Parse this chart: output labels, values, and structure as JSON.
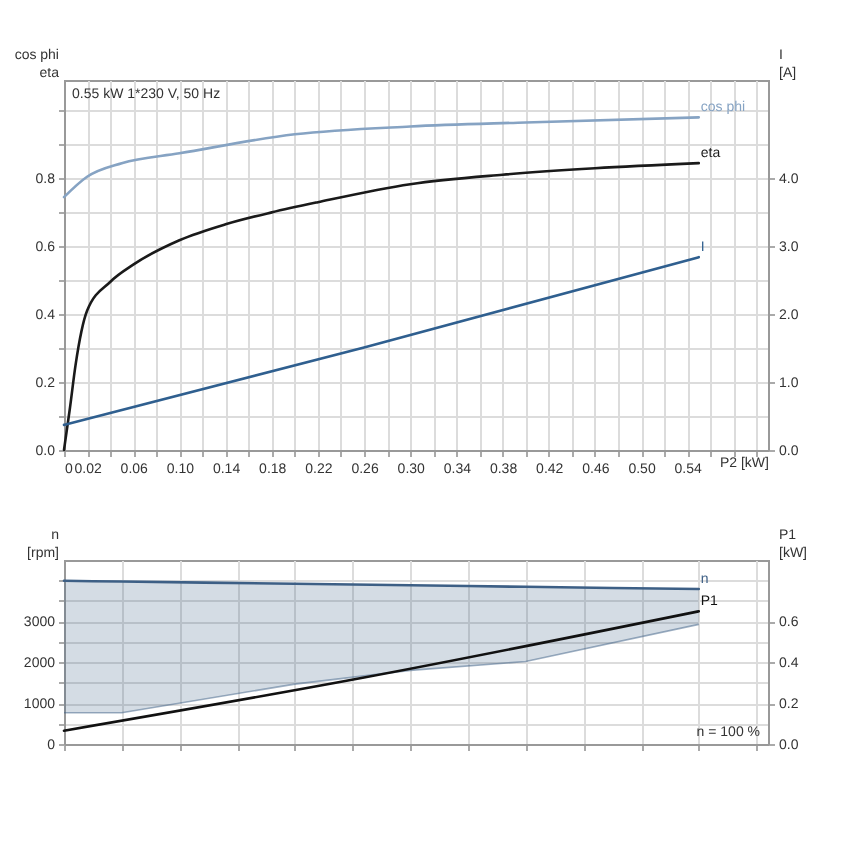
{
  "chart_data": [
    {
      "type": "line",
      "xlabel": "P2 [kW]",
      "ylabel": "cos phi\neta",
      "y2label": "I\n[A]",
      "annotations": [
        "0.55 kW   1*230 V, 50 Hz"
      ],
      "grid": true,
      "xlim": [
        0,
        0.61
      ],
      "xticks": [
        {
          "value": 0,
          "label": "0"
        },
        {
          "value": 0.02,
          "label": "0.02"
        },
        {
          "value": 0.04,
          "label": null
        },
        {
          "value": 0.06,
          "label": "0.06"
        },
        {
          "value": 0.08,
          "label": null
        },
        {
          "value": 0.1,
          "label": "0.10"
        },
        {
          "value": 0.12,
          "label": null
        },
        {
          "value": 0.14,
          "label": "0.14"
        },
        {
          "value": 0.16,
          "label": null
        },
        {
          "value": 0.18,
          "label": "0.18"
        },
        {
          "value": 0.2,
          "label": null
        },
        {
          "value": 0.22,
          "label": "0.22"
        },
        {
          "value": 0.24,
          "label": null
        },
        {
          "value": 0.26,
          "label": "0.26"
        },
        {
          "value": 0.28,
          "label": null
        },
        {
          "value": 0.3,
          "label": "0.30"
        },
        {
          "value": 0.32,
          "label": null
        },
        {
          "value": 0.34,
          "label": "0.34"
        },
        {
          "value": 0.36,
          "label": null
        },
        {
          "value": 0.38,
          "label": "0.38"
        },
        {
          "value": 0.4,
          "label": null
        },
        {
          "value": 0.42,
          "label": "0.42"
        },
        {
          "value": 0.44,
          "label": null
        },
        {
          "value": 0.46,
          "label": "0.46"
        },
        {
          "value": 0.48,
          "label": null
        },
        {
          "value": 0.5,
          "label": "0.50"
        },
        {
          "value": 0.52,
          "label": null
        },
        {
          "value": 0.54,
          "label": "0.54"
        },
        {
          "value": 0.56,
          "label": null
        },
        {
          "value": 0.58,
          "label": null
        },
        {
          "value": 0.6,
          "label": null
        }
      ],
      "ylim": [
        0,
        1.09
      ],
      "yticks": [
        {
          "value": 0,
          "label": "0.0"
        },
        {
          "value": 0.1,
          "label": null
        },
        {
          "value": 0.2,
          "label": "0.2"
        },
        {
          "value": 0.3,
          "label": null
        },
        {
          "value": 0.4,
          "label": "0.4"
        },
        {
          "value": 0.5,
          "label": null
        },
        {
          "value": 0.6,
          "label": "0.6"
        },
        {
          "value": 0.7,
          "label": null
        },
        {
          "value": 0.8,
          "label": "0.8"
        },
        {
          "value": 0.9,
          "label": null
        },
        {
          "value": 1.0,
          "label": null
        }
      ],
      "y2lim": [
        0,
        5.45
      ],
      "y2ticks": [
        {
          "value": 0,
          "label": "0.0"
        },
        {
          "value": 1,
          "label": "1.0"
        },
        {
          "value": 2,
          "label": "2.0"
        },
        {
          "value": 3,
          "label": "3.0"
        },
        {
          "value": 4,
          "label": "4.0"
        }
      ],
      "series": [
        {
          "name": "cos phi",
          "color": "#86a3c3",
          "x": [
            0,
            0.02,
            0.05,
            0.1,
            0.2,
            0.3,
            0.4,
            0.55
          ],
          "values": [
            0.745,
            0.805,
            0.845,
            0.874,
            0.93,
            0.953,
            0.965,
            0.98
          ]
        },
        {
          "name": "eta",
          "color": "#1a1a1a",
          "x": [
            0,
            0.005,
            0.01,
            0.02,
            0.04,
            0.06,
            0.1,
            0.14,
            0.18,
            0.22,
            0.3,
            0.38,
            0.46,
            0.55
          ],
          "values": [
            0,
            0.12,
            0.25,
            0.41,
            0.495,
            0.546,
            0.618,
            0.665,
            0.7,
            0.73,
            0.783,
            0.811,
            0.83,
            0.845
          ]
        },
        {
          "name": "I",
          "color": "#2f5f8f",
          "axis": "y2",
          "x": [
            0,
            0.26,
            0.55
          ],
          "values": [
            0.37,
            1.51,
            2.84
          ]
        }
      ]
    },
    {
      "type": "line",
      "ylabel": "n\n[rpm]",
      "y2label": "P1\n[kW]",
      "annotations": [
        "n = 100 %"
      ],
      "grid": true,
      "tick_labels": "y",
      "xlim": [
        0,
        0.61
      ],
      "xticks": [
        0,
        0.05,
        0.1,
        0.15,
        0.2,
        0.25,
        0.3,
        0.35,
        0.4,
        0.45,
        0.5,
        0.55,
        0.6
      ],
      "ylim": [
        0,
        4500
      ],
      "yticks": [
        0,
        {
          "value": 500,
          "label": null
        },
        1000,
        {
          "value": 1500,
          "label": null
        },
        2000,
        {
          "value": 2500,
          "label": null
        },
        3000,
        {
          "value": 3500,
          "label": null
        },
        {
          "value": 4000,
          "label": null
        }
      ],
      "y2lim": [
        0,
        0.9
      ],
      "y2ticks": [
        {
          "value": 0,
          "label": "0.0"
        },
        {
          "value": 0.2,
          "label": "0.2"
        },
        {
          "value": 0.4,
          "label": "0.4"
        },
        {
          "value": 0.6,
          "label": "0.6"
        }
      ],
      "series": [
        {
          "name": "n",
          "color": "#3d5f85",
          "x": [
            0,
            0.05,
            0.2,
            0.3,
            0.4,
            0.55
          ],
          "values": [
            3991,
            3973,
            3918,
            3881,
            3844,
            3789
          ],
          "lower": [
            763,
            763,
            1465,
            1800,
            2018,
            2925
          ],
          "upper": [
            3991,
            3973,
            3918,
            3881,
            3844,
            3789
          ]
        },
        {
          "name": "P1",
          "color": "#111111",
          "axis": "y2",
          "x": [
            0,
            0.26,
            0.55
          ],
          "values": [
            0.065,
            0.325,
            0.649
          ]
        }
      ]
    }
  ]
}
